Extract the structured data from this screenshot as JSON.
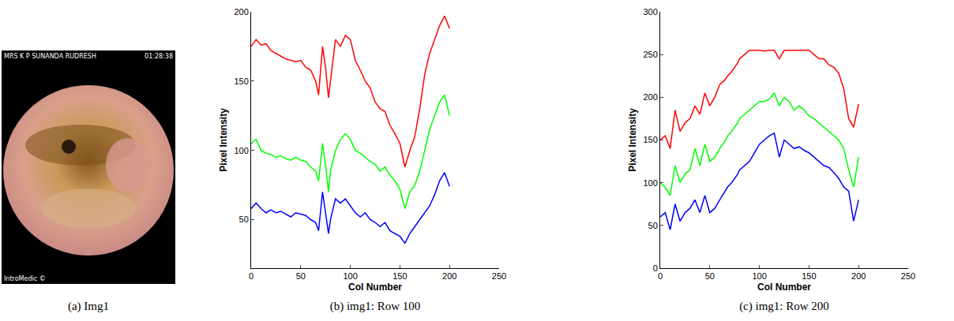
{
  "image_panel": {
    "caption": "(a) Img1",
    "texts": {
      "top_left": "MRS K P SUNANDA RUDRESH",
      "top_right": "01:28:38",
      "bottom_left": "IntroMedic ©"
    }
  },
  "chart_data": [
    {
      "type": "line",
      "caption": "(b) img1: Row 100",
      "x_label": "Col Number",
      "y_label": "Pixel Intensity",
      "x": [
        0,
        5,
        10,
        15,
        20,
        25,
        30,
        35,
        40,
        45,
        50,
        55,
        60,
        65,
        68,
        72,
        75,
        78,
        80,
        85,
        90,
        95,
        100,
        105,
        110,
        115,
        120,
        125,
        130,
        135,
        140,
        145,
        150,
        155,
        160,
        165,
        170,
        175,
        180,
        185,
        190,
        195,
        200
      ],
      "series": [
        {
          "color": "#ff0000",
          "values": [
            175,
            180,
            176,
            177,
            172,
            170,
            168,
            166,
            165,
            164,
            165,
            160,
            158,
            150,
            140,
            175,
            160,
            138,
            150,
            180,
            175,
            183,
            180,
            165,
            158,
            150,
            145,
            135,
            130,
            128,
            118,
            112,
            105,
            88,
            100,
            110,
            130,
            155,
            170,
            180,
            190,
            197,
            188
          ]
        },
        {
          "color": "#00ff00",
          "values": [
            105,
            108,
            100,
            98,
            97,
            95,
            96,
            94,
            93,
            95,
            93,
            92,
            88,
            85,
            78,
            105,
            90,
            70,
            85,
            100,
            108,
            112,
            108,
            100,
            98,
            95,
            92,
            90,
            85,
            88,
            82,
            78,
            72,
            58,
            70,
            75,
            85,
            100,
            115,
            125,
            135,
            140,
            125
          ]
        },
        {
          "color": "#0000ff",
          "values": [
            58,
            62,
            58,
            55,
            57,
            55,
            56,
            54,
            52,
            55,
            54,
            53,
            50,
            48,
            42,
            70,
            55,
            40,
            50,
            65,
            62,
            65,
            60,
            55,
            52,
            55,
            50,
            48,
            45,
            48,
            42,
            40,
            38,
            33,
            40,
            45,
            50,
            55,
            60,
            68,
            78,
            84,
            74
          ]
        }
      ],
      "xlim": [
        0,
        250
      ],
      "xticks": [
        0,
        50,
        100,
        150,
        200,
        250
      ],
      "ylim": [
        15,
        200
      ],
      "yticks": [
        50,
        100,
        150,
        200
      ],
      "grid": false
    },
    {
      "type": "line",
      "caption": "(c) img1: Row 200",
      "x_label": "Col Number",
      "y_label": "Pixel Intensity",
      "x": [
        0,
        5,
        10,
        15,
        20,
        25,
        30,
        35,
        40,
        45,
        50,
        55,
        60,
        65,
        68,
        72,
        75,
        78,
        80,
        85,
        90,
        95,
        100,
        105,
        110,
        115,
        120,
        125,
        130,
        135,
        140,
        145,
        150,
        155,
        160,
        165,
        170,
        175,
        180,
        185,
        190,
        195,
        200
      ],
      "series": [
        {
          "color": "#ff0000",
          "values": [
            150,
            155,
            140,
            185,
            160,
            170,
            175,
            190,
            180,
            205,
            190,
            200,
            215,
            220,
            225,
            230,
            235,
            240,
            245,
            250,
            255,
            255,
            255,
            254,
            255,
            255,
            245,
            255,
            255,
            255,
            255,
            255,
            255,
            250,
            245,
            245,
            238,
            235,
            228,
            210,
            175,
            165,
            192
          ]
        },
        {
          "color": "#00ff00",
          "values": [
            100,
            95,
            85,
            120,
            100,
            110,
            115,
            140,
            120,
            145,
            125,
            130,
            140,
            148,
            155,
            160,
            165,
            170,
            175,
            180,
            185,
            190,
            195,
            195,
            198,
            205,
            190,
            200,
            195,
            185,
            190,
            185,
            178,
            175,
            170,
            165,
            160,
            155,
            150,
            140,
            115,
            95,
            130
          ]
        },
        {
          "color": "#0000ff",
          "values": [
            60,
            65,
            45,
            75,
            55,
            65,
            70,
            80,
            65,
            85,
            65,
            70,
            80,
            90,
            95,
            100,
            105,
            110,
            115,
            120,
            125,
            135,
            145,
            150,
            155,
            158,
            130,
            150,
            145,
            140,
            142,
            138,
            135,
            130,
            125,
            120,
            118,
            112,
            105,
            95,
            90,
            55,
            80
          ]
        }
      ],
      "xlim": [
        0,
        250
      ],
      "xticks": [
        0,
        50,
        100,
        150,
        200,
        250
      ],
      "ylim": [
        0,
        300
      ],
      "yticks": [
        0,
        50,
        100,
        150,
        200,
        250,
        300
      ],
      "grid": false
    }
  ]
}
